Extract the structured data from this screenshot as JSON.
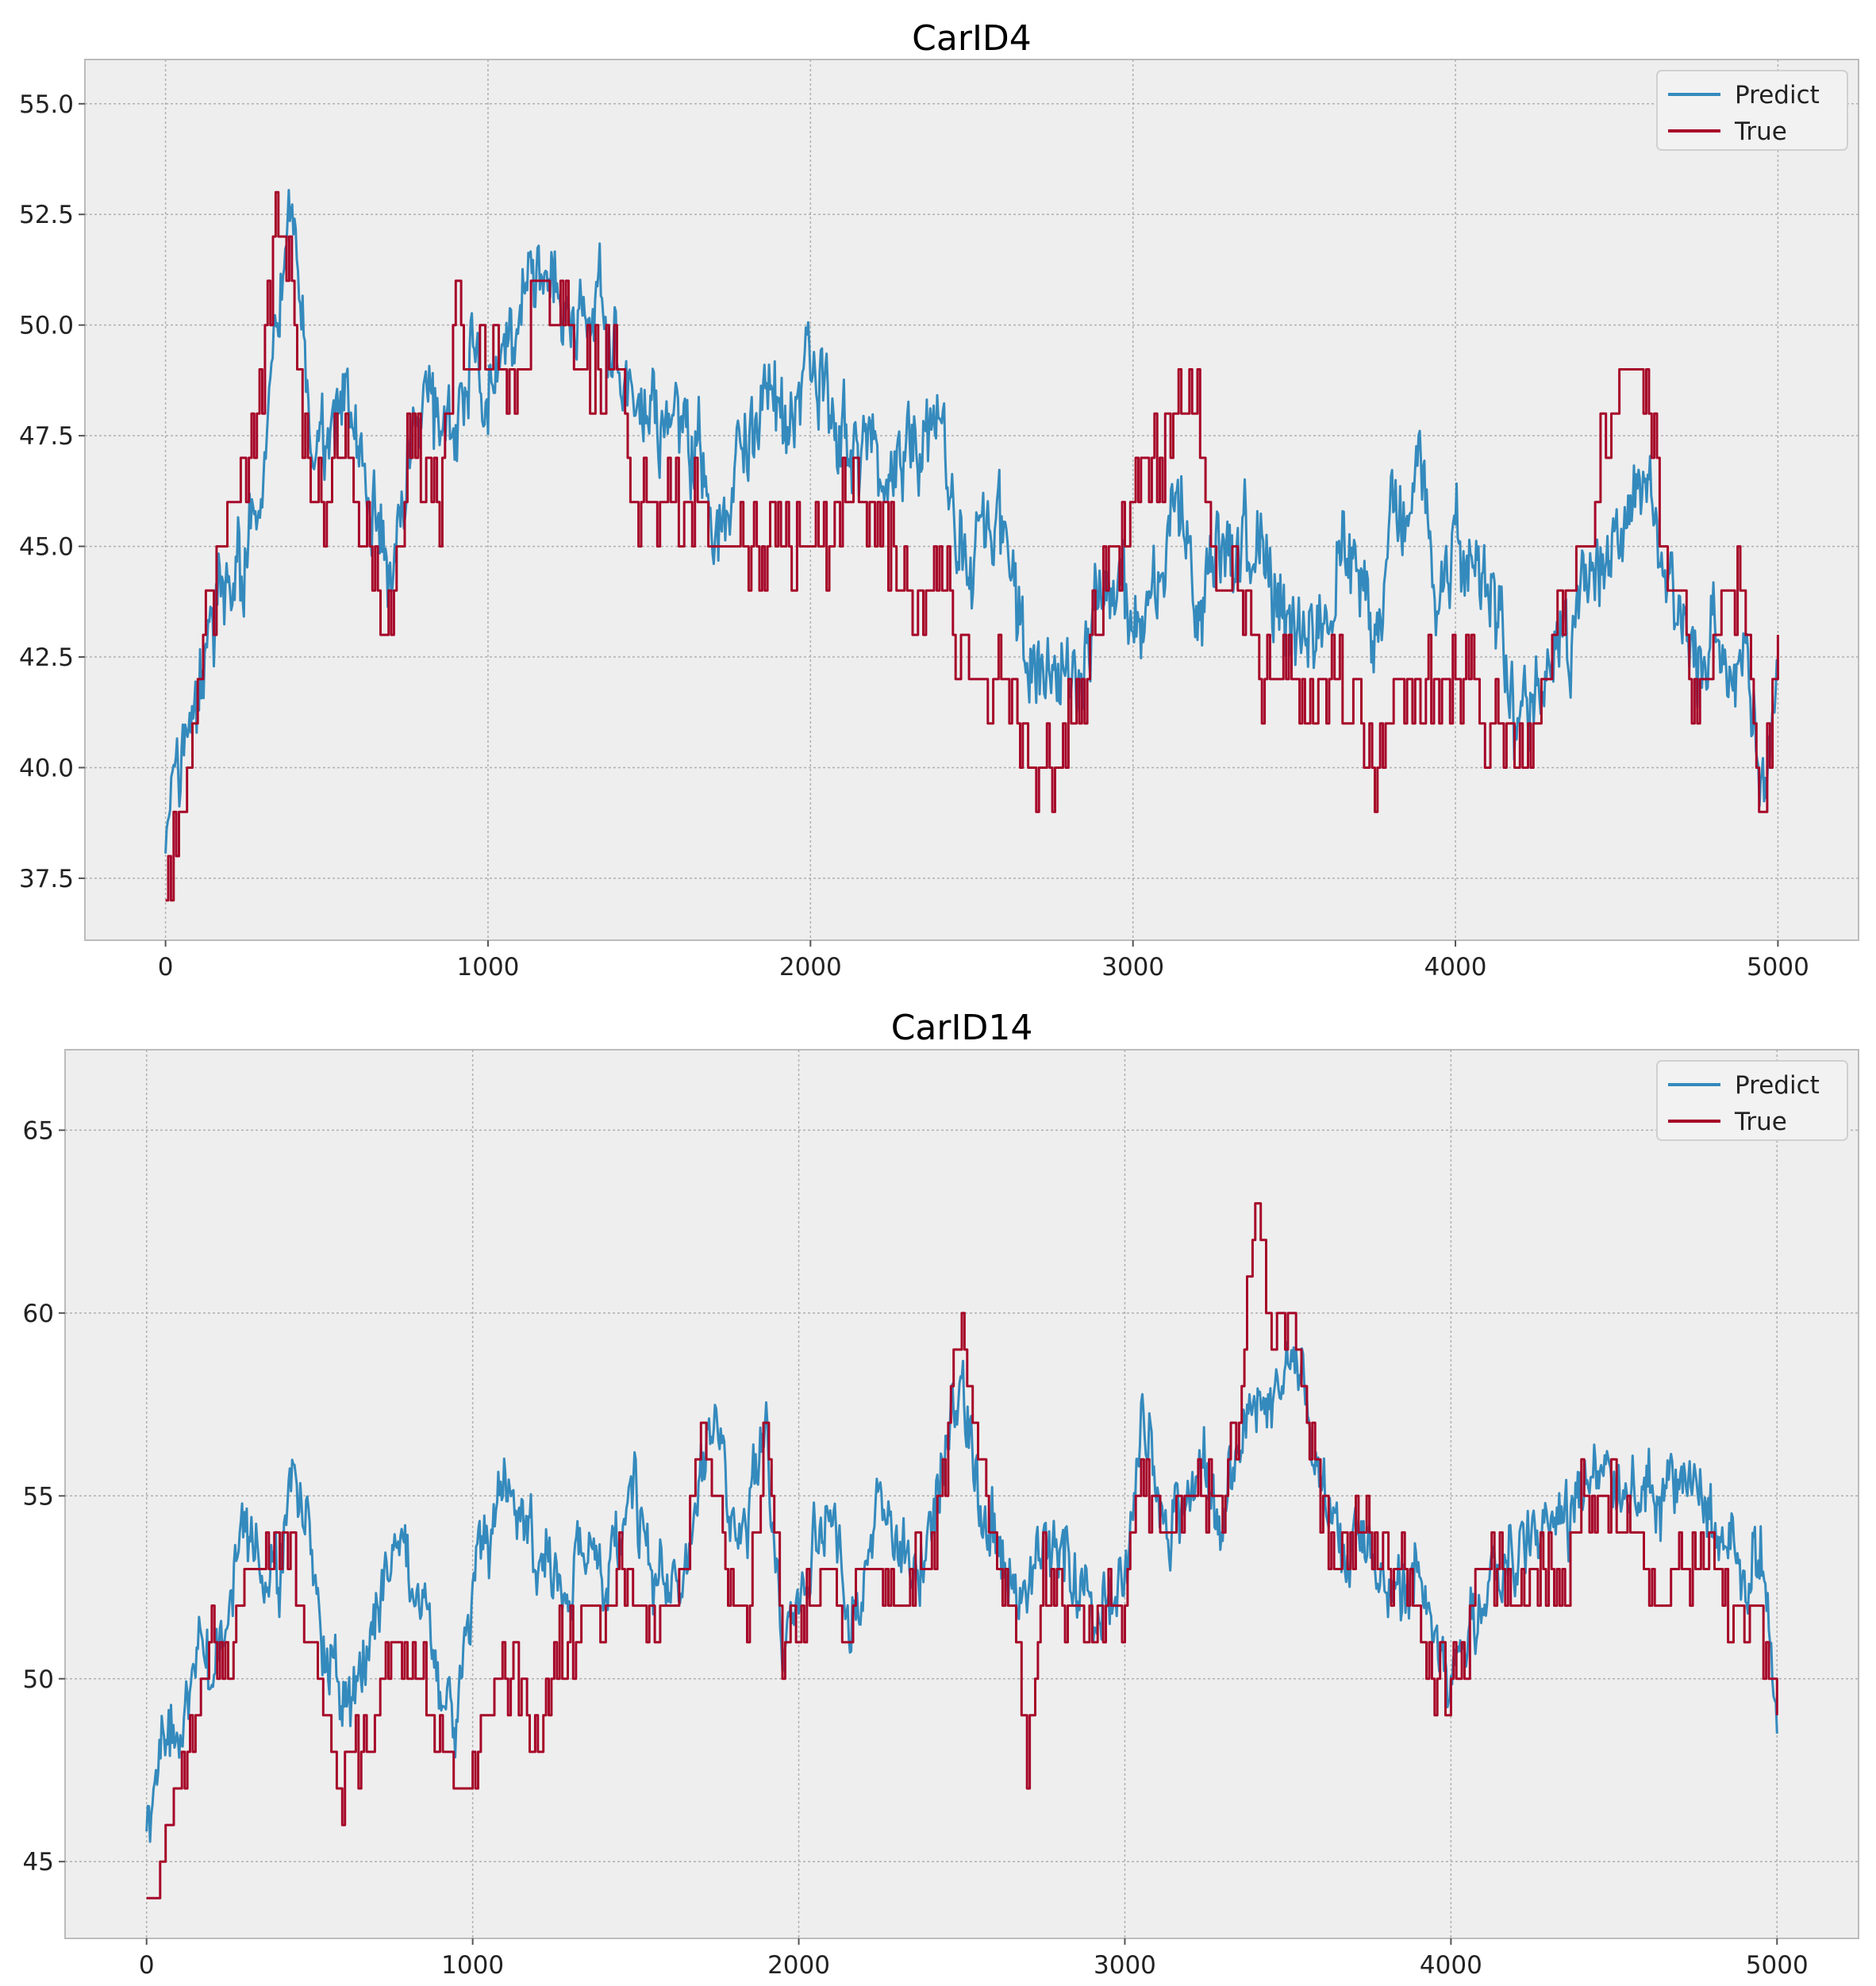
{
  "chart_data": [
    {
      "type": "line",
      "title": "CarID4",
      "xlabel": "",
      "ylabel": "",
      "xlim": [
        -250,
        5250
      ],
      "ylim": [
        36.1,
        56.0
      ],
      "xticks": [
        0,
        1000,
        2000,
        3000,
        4000,
        5000
      ],
      "xtick_labels": [
        "0",
        "1000",
        "2000",
        "3000",
        "4000",
        "5000"
      ],
      "yticks": [
        37.5,
        40.0,
        42.5,
        45.0,
        47.5,
        50.0,
        52.5,
        55.0
      ],
      "ytick_labels": [
        "37.5",
        "40.0",
        "42.5",
        "45.0",
        "47.5",
        "50.0",
        "52.5",
        "55.0"
      ],
      "grid": true,
      "legend_position": "top-right",
      "series": [
        {
          "name": "Predict",
          "color": "#348ABD",
          "style": "noisy",
          "x": [
            0,
            50,
            100,
            150,
            200,
            250,
            300,
            350,
            400,
            450,
            500,
            550,
            600,
            650,
            700,
            750,
            800,
            850,
            900,
            950,
            1000,
            1050,
            1100,
            1150,
            1200,
            1250,
            1300,
            1350,
            1400,
            1450,
            1500,
            1550,
            1600,
            1650,
            1700,
            1750,
            1800,
            1850,
            1900,
            1950,
            2000,
            2050,
            2100,
            2150,
            2200,
            2250,
            2300,
            2350,
            2400,
            2450,
            2500,
            2550,
            2600,
            2650,
            2700,
            2750,
            2800,
            2850,
            2900,
            2950,
            3000,
            3050,
            3100,
            3150,
            3200,
            3250,
            3300,
            3350,
            3400,
            3450,
            3500,
            3550,
            3600,
            3650,
            3700,
            3750,
            3800,
            3850,
            3900,
            3950,
            4000,
            4050,
            4100,
            4150,
            4200,
            4250,
            4300,
            4350,
            4400,
            4450,
            4500,
            4550,
            4600,
            4650,
            4700,
            4750,
            4800,
            4850,
            4900,
            4950,
            5000
          ],
          "values": [
            38.6,
            40.5,
            41.2,
            43.5,
            44.0,
            44.5,
            46.5,
            51.0,
            52.0,
            47.5,
            47.0,
            48.5,
            47.0,
            45.5,
            44.0,
            47.0,
            48.5,
            47.5,
            47.5,
            49.0,
            48.5,
            49.0,
            50.0,
            51.0,
            51.0,
            50.5,
            50.5,
            51.0,
            48.5,
            48.0,
            48.0,
            48.0,
            47.0,
            47.5,
            44.5,
            46.5,
            47.5,
            48.0,
            48.0,
            48.5,
            49.0,
            48.5,
            48.0,
            47.0,
            47.5,
            47.0,
            47.5,
            47.5,
            47.8,
            45.0,
            44.5,
            45.5,
            45.0,
            43.0,
            42.0,
            42.5,
            41.5,
            42.5,
            44.0,
            44.0,
            43.5,
            44.0,
            44.5,
            46.0,
            43.5,
            44.5,
            45.0,
            45.5,
            44.5,
            44.0,
            43.0,
            42.5,
            43.5,
            45.0,
            44.0,
            43.0,
            45.5,
            45.5,
            46.0,
            44.0,
            45.0,
            44.5,
            44.5,
            42.5,
            41.0,
            41.5,
            42.0,
            43.0,
            44.0,
            44.5,
            45.0,
            46.5,
            46.5,
            44.5,
            44.0,
            42.0,
            43.0,
            42.0,
            43.0,
            40.0,
            42.0
          ]
        },
        {
          "name": "True",
          "color": "#A60628",
          "style": "step",
          "x": [
            0,
            50,
            100,
            150,
            200,
            250,
            300,
            350,
            400,
            450,
            500,
            550,
            600,
            650,
            700,
            750,
            800,
            850,
            900,
            950,
            1000,
            1050,
            1100,
            1150,
            1200,
            1250,
            1300,
            1350,
            1400,
            1450,
            1500,
            1550,
            1600,
            1650,
            1700,
            1750,
            1800,
            1850,
            1900,
            1950,
            2000,
            2050,
            2100,
            2150,
            2200,
            2250,
            2300,
            2350,
            2400,
            2450,
            2500,
            2550,
            2600,
            2650,
            2700,
            2750,
            2800,
            2850,
            2900,
            2950,
            3000,
            3050,
            3100,
            3150,
            3200,
            3250,
            3300,
            3350,
            3400,
            3450,
            3500,
            3550,
            3600,
            3650,
            3700,
            3750,
            3800,
            3850,
            3900,
            3950,
            4000,
            4050,
            4100,
            4150,
            4200,
            4250,
            4300,
            4350,
            4400,
            4450,
            4500,
            4550,
            4600,
            4650,
            4700,
            4750,
            4800,
            4850,
            4900,
            4950,
            5000
          ],
          "values": [
            37.0,
            39.0,
            42.0,
            44.0,
            46.0,
            47.0,
            49.0,
            53.0,
            50.0,
            46.0,
            46.0,
            48.0,
            46.0,
            44.0,
            43.0,
            47.0,
            47.0,
            46.0,
            50.0,
            49.0,
            50.0,
            49.0,
            49.0,
            51.0,
            50.0,
            50.0,
            49.0,
            49.0,
            49.0,
            46.0,
            46.0,
            46.0,
            46.0,
            46.0,
            45.0,
            45.0,
            45.0,
            45.0,
            45.0,
            45.0,
            45.0,
            45.0,
            46.0,
            46.0,
            46.0,
            45.0,
            44.0,
            44.0,
            45.0,
            43.0,
            42.0,
            42.0,
            42.0,
            41.0,
            40.0,
            40.0,
            41.0,
            42.0,
            44.0,
            45.0,
            46.0,
            47.0,
            47.0,
            49.0,
            48.0,
            45.0,
            44.0,
            44.0,
            42.0,
            42.0,
            42.0,
            41.0,
            42.0,
            42.0,
            41.0,
            40.0,
            41.0,
            42.0,
            42.0,
            42.0,
            42.0,
            42.0,
            41.0,
            41.0,
            40.0,
            41.0,
            43.0,
            44.0,
            45.0,
            47.0,
            49.0,
            49.0,
            48.0,
            45.0,
            44.0,
            41.0,
            43.0,
            44.0,
            44.0,
            39.0,
            43.0
          ]
        }
      ]
    },
    {
      "type": "line",
      "title": "CarID14",
      "xlabel": "",
      "ylabel": "",
      "xlim": [
        -250,
        5250
      ],
      "ylim": [
        42.9,
        67.2
      ],
      "xticks": [
        0,
        1000,
        2000,
        3000,
        4000,
        5000
      ],
      "xtick_labels": [
        "0",
        "1000",
        "2000",
        "3000",
        "4000",
        "5000"
      ],
      "yticks": [
        45,
        50,
        55,
        60,
        65
      ],
      "ytick_labels": [
        "45",
        "50",
        "55",
        "60",
        "65"
      ],
      "grid": true,
      "legend_position": "top-right",
      "series": [
        {
          "name": "Predict",
          "color": "#348ABD",
          "style": "noisy",
          "x": [
            0,
            50,
            100,
            150,
            200,
            250,
            300,
            350,
            400,
            450,
            500,
            550,
            600,
            650,
            700,
            750,
            800,
            850,
            900,
            950,
            1000,
            1050,
            1100,
            1150,
            1200,
            1250,
            1300,
            1350,
            1400,
            1450,
            1500,
            1550,
            1600,
            1650,
            1700,
            1750,
            1800,
            1850,
            1900,
            1950,
            2000,
            2050,
            2100,
            2150,
            2200,
            2250,
            2300,
            2350,
            2400,
            2450,
            2500,
            2550,
            2600,
            2650,
            2700,
            2750,
            2800,
            2850,
            2900,
            2950,
            3000,
            3050,
            3100,
            3150,
            3200,
            3250,
            3300,
            3350,
            3400,
            3450,
            3500,
            3550,
            3600,
            3650,
            3700,
            3750,
            3800,
            3850,
            3900,
            3950,
            4000,
            4050,
            4100,
            4150,
            4200,
            4250,
            4300,
            4350,
            4400,
            4450,
            4500,
            4550,
            4600,
            4650,
            4700,
            4750,
            4800,
            4850,
            4900,
            4950,
            5000
          ],
          "values": [
            46.2,
            48.2,
            48.5,
            50.5,
            50.5,
            52.0,
            54.5,
            53.5,
            52.5,
            55.5,
            54.0,
            50.5,
            49.5,
            50.0,
            51.5,
            53.5,
            53.5,
            52.0,
            50.0,
            49.0,
            53.0,
            53.5,
            55.5,
            54.0,
            53.5,
            53.5,
            52.0,
            54.0,
            53.0,
            53.5,
            54.5,
            53.0,
            52.5,
            53.0,
            55.5,
            57.0,
            54.0,
            55.0,
            57.0,
            51.0,
            52.0,
            53.5,
            54.5,
            52.0,
            52.5,
            55.0,
            54.0,
            53.0,
            53.5,
            56.5,
            58.0,
            55.5,
            54.0,
            53.0,
            52.0,
            54.0,
            53.5,
            52.5,
            52.0,
            52.5,
            52.5,
            57.0,
            55.0,
            54.0,
            55.5,
            55.5,
            54.0,
            56.5,
            57.5,
            57.0,
            59.0,
            58.5,
            55.5,
            53.5,
            53.5,
            53.5,
            53.0,
            52.5,
            53.0,
            51.5,
            50.0,
            51.0,
            52.5,
            53.0,
            53.5,
            54.0,
            54.5,
            54.0,
            55.0,
            55.0,
            55.5,
            55.0,
            55.5,
            55.0,
            55.5,
            55.0,
            54.0,
            54.0,
            53.0,
            54.0,
            48.5
          ]
        },
        {
          "name": "True",
          "color": "#A60628",
          "style": "step",
          "x": [
            0,
            50,
            100,
            150,
            200,
            250,
            300,
            350,
            400,
            450,
            500,
            550,
            600,
            650,
            700,
            750,
            800,
            850,
            900,
            950,
            1000,
            1050,
            1100,
            1150,
            1200,
            1250,
            1300,
            1350,
            1400,
            1450,
            1500,
            1550,
            1600,
            1650,
            1700,
            1750,
            1800,
            1850,
            1900,
            1950,
            2000,
            2050,
            2100,
            2150,
            2200,
            2250,
            2300,
            2350,
            2400,
            2450,
            2500,
            2550,
            2600,
            2650,
            2700,
            2750,
            2800,
            2850,
            2900,
            2950,
            3000,
            3050,
            3100,
            3150,
            3200,
            3250,
            3300,
            3350,
            3400,
            3450,
            3500,
            3550,
            3600,
            3650,
            3700,
            3750,
            3800,
            3850,
            3900,
            3950,
            4000,
            4050,
            4100,
            4150,
            4200,
            4250,
            4300,
            4350,
            4400,
            4450,
            4500,
            4550,
            4600,
            4650,
            4700,
            4750,
            4800,
            4850,
            4900,
            4950,
            5000
          ],
          "values": [
            44.0,
            45.0,
            47.0,
            49.0,
            51.0,
            50.0,
            53.0,
            53.0,
            54.0,
            53.0,
            51.0,
            49.0,
            47.0,
            48.0,
            49.0,
            51.0,
            51.0,
            50.0,
            48.0,
            47.0,
            48.0,
            49.0,
            50.0,
            50.0,
            48.0,
            51.0,
            51.0,
            52.0,
            51.0,
            53.0,
            52.0,
            51.0,
            52.0,
            53.0,
            56.0,
            55.0,
            52.0,
            52.0,
            57.0,
            51.0,
            52.0,
            52.0,
            53.0,
            51.0,
            53.0,
            53.0,
            52.0,
            53.0,
            53.0,
            56.0,
            60.0,
            56.0,
            53.0,
            52.0,
            48.0,
            53.0,
            52.0,
            52.0,
            51.0,
            52.0,
            52.0,
            56.0,
            54.0,
            54.0,
            55.0,
            55.0,
            55.0,
            57.0,
            63.0,
            59.0,
            60.0,
            58.0,
            55.0,
            53.0,
            54.0,
            54.0,
            53.0,
            53.0,
            52.0,
            50.0,
            50.0,
            51.0,
            53.0,
            53.0,
            52.0,
            53.0,
            53.0,
            52.0,
            55.0,
            55.0,
            55.0,
            54.0,
            53.0,
            52.0,
            53.0,
            53.0,
            53.0,
            52.0,
            52.0,
            51.0,
            49.0
          ]
        }
      ]
    }
  ]
}
